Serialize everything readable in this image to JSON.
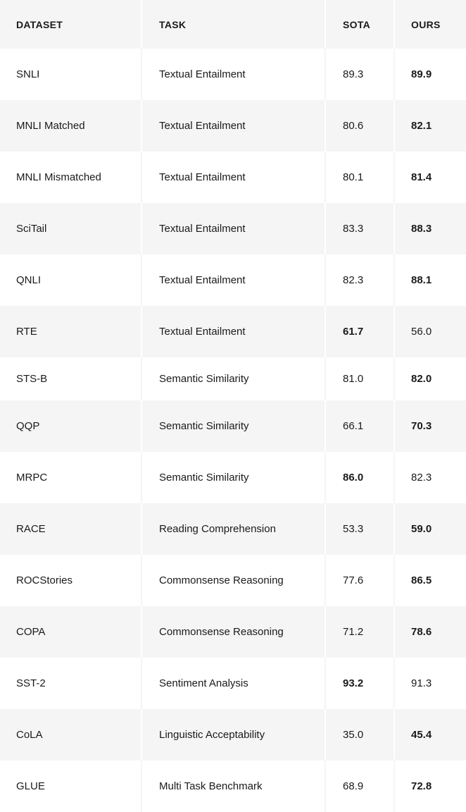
{
  "table": {
    "headers": {
      "dataset": "DATASET",
      "task": "TASK",
      "sota": "SOTA",
      "ours": "OURS"
    },
    "rows": [
      {
        "dataset": "SNLI",
        "task": "Textual Entailment",
        "sota": "89.3",
        "ours": "89.9",
        "best": "ours"
      },
      {
        "dataset": "MNLI Matched",
        "task": "Textual Entailment",
        "sota": "80.6",
        "ours": "82.1",
        "best": "ours"
      },
      {
        "dataset": "MNLI Mismatched",
        "task": "Textual Entailment",
        "sota": "80.1",
        "ours": "81.4",
        "best": "ours"
      },
      {
        "dataset": "SciTail",
        "task": "Textual Entailment",
        "sota": "83.3",
        "ours": "88.3",
        "best": "ours"
      },
      {
        "dataset": "QNLI",
        "task": "Textual Entailment",
        "sota": "82.3",
        "ours": "88.1",
        "best": "ours"
      },
      {
        "dataset": "RTE",
        "task": "Textual Entailment",
        "sota": "61.7",
        "ours": "56.0",
        "best": "sota"
      },
      {
        "dataset": "STS-B",
        "task": "Semantic Similarity",
        "sota": "81.0",
        "ours": "82.0",
        "best": "ours"
      },
      {
        "dataset": "QQP",
        "task": "Semantic Similarity",
        "sota": "66.1",
        "ours": "70.3",
        "best": "ours"
      },
      {
        "dataset": "MRPC",
        "task": "Semantic Similarity",
        "sota": "86.0",
        "ours": "82.3",
        "best": "sota"
      },
      {
        "dataset": "RACE",
        "task": "Reading Comprehension",
        "sota": "53.3",
        "ours": "59.0",
        "best": "ours"
      },
      {
        "dataset": "ROCStories",
        "task": "Commonsense Reasoning",
        "sota": "77.6",
        "ours": "86.5",
        "best": "ours"
      },
      {
        "dataset": "COPA",
        "task": "Commonsense Reasoning",
        "sota": "71.2",
        "ours": "78.6",
        "best": "ours"
      },
      {
        "dataset": "SST-2",
        "task": "Sentiment Analysis",
        "sota": "93.2",
        "ours": "91.3",
        "best": "sota"
      },
      {
        "dataset": "CoLA",
        "task": "Linguistic Acceptability",
        "sota": "35.0",
        "ours": "45.4",
        "best": "ours"
      },
      {
        "dataset": "GLUE",
        "task": "Multi Task Benchmark",
        "sota": "68.9",
        "ours": "72.8",
        "best": "ours"
      }
    ]
  }
}
